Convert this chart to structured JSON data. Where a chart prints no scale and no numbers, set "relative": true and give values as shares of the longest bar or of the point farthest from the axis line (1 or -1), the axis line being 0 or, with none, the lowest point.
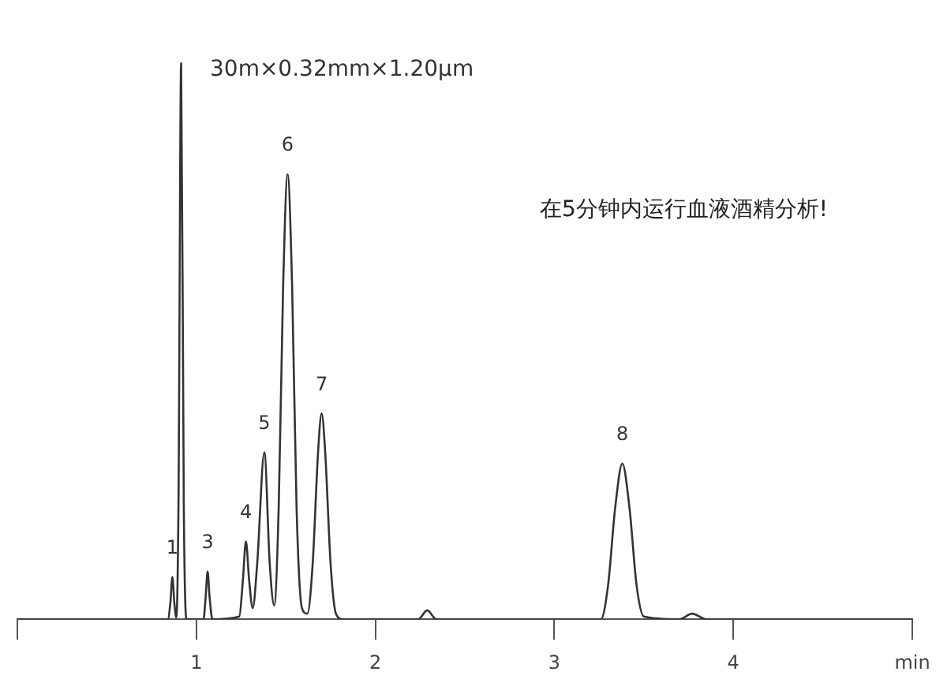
{
  "chart_data": {
    "type": "line",
    "title": "30m×0.32mm×1.20μm",
    "relative": true,
    "color": "#333333",
    "marker": "none",
    "grid": false,
    "legend": false,
    "x": [
      0,
      0.84,
      0.855,
      0.866,
      0.877,
      0.888,
      0.9,
      0.915,
      0.93,
      0.945,
      1.04,
      1.052,
      1.063,
      1.074,
      1.09,
      1.24,
      1.26,
      1.277,
      1.295,
      1.315,
      1.34,
      1.38,
      1.41,
      1.435,
      1.46,
      1.485,
      1.51,
      1.535,
      1.56,
      1.59,
      1.62,
      1.65,
      1.68,
      1.7,
      1.72,
      1.75,
      1.78,
      1.82,
      2.24,
      2.29,
      2.34,
      3.26,
      3.3,
      3.34,
      3.38,
      3.42,
      3.46,
      3.5,
      3.7,
      3.77,
      3.85,
      5
    ],
    "values": [
      0,
      0,
      0.03,
      0.076,
      0.03,
      0.003,
      0.2,
      1,
      0.2,
      0,
      0,
      0.04,
      0.086,
      0.04,
      0,
      0.005,
      0.07,
      0.14,
      0.07,
      0.02,
      0.1,
      0.3,
      0.1,
      0.025,
      0.2,
      0.6,
      0.8,
      0.6,
      0.2,
      0.02,
      0.01,
      0.1,
      0.3,
      0.37,
      0.3,
      0.1,
      0.01,
      0,
      0,
      0.016,
      0,
      0,
      0.06,
      0.2,
      0.28,
      0.2,
      0.06,
      0.005,
      0,
      0.01,
      0,
      0
    ],
    "xlim": [
      0,
      5
    ],
    "xticks": [
      {
        "value": 0,
        "label": null
      },
      1,
      2,
      3,
      4,
      {
        "value": 5,
        "label": "min"
      }
    ],
    "annotations": [
      {
        "text": "1",
        "x": 0.866,
        "y": 0.076
      },
      {
        "text": "3",
        "x": 1.063,
        "y": 0.086
      },
      {
        "text": "4",
        "x": 1.277,
        "y": 0.14
      },
      {
        "text": "5",
        "x": 1.38,
        "y": 0.3
      },
      {
        "text": "6",
        "x": 1.51,
        "y": 0.8
      },
      {
        "text": "7",
        "x": 1.7,
        "y": 0.37
      },
      {
        "text": "8",
        "x": 3.38,
        "y": 0.28
      },
      "在5分钟内运行血液酒精分析!"
    ]
  }
}
